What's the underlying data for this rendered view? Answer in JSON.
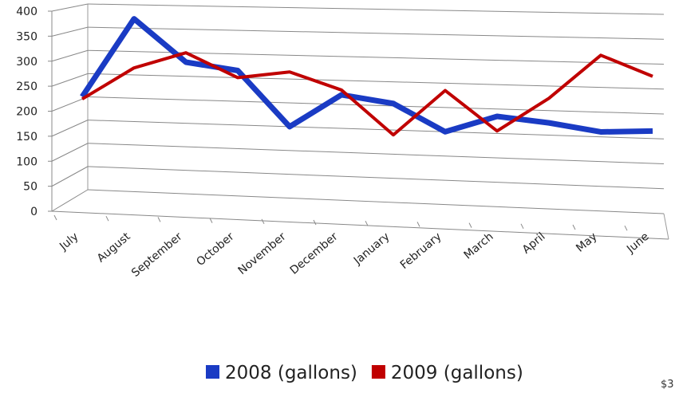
{
  "chart_data": {
    "type": "line",
    "categories": [
      "July",
      "August",
      "September",
      "October",
      "November",
      "December",
      "January",
      "February",
      "March",
      "April",
      "May",
      "June"
    ],
    "series": [
      {
        "name": "2008 (gallons)",
        "color": "#1a3bc4",
        "values": [
          200,
          370,
          280,
          265,
          150,
          220,
          205,
          150,
          185,
          175,
          160,
          165
        ]
      },
      {
        "name": "2009 (gallons)",
        "color": "#c00000",
        "values": [
          195,
          265,
          300,
          250,
          265,
          230,
          140,
          235,
          155,
          225,
          315,
          275
        ]
      }
    ],
    "ylim": [
      0,
      400
    ],
    "yticks": [
      0,
      50,
      100,
      150,
      200,
      250,
      300,
      350,
      400
    ],
    "grid": true,
    "legend": "bottom",
    "footnote": "$3"
  }
}
